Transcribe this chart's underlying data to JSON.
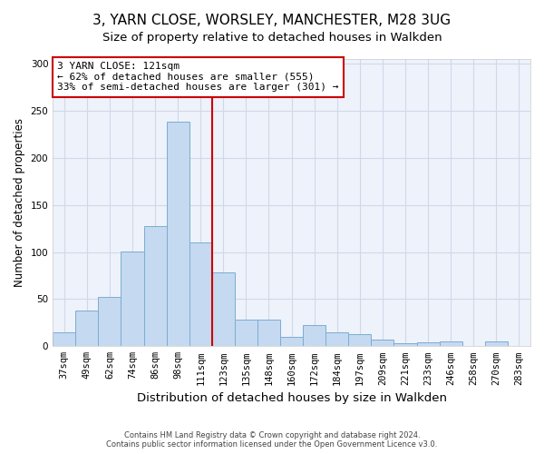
{
  "title": "3, YARN CLOSE, WORSLEY, MANCHESTER, M28 3UG",
  "subtitle": "Size of property relative to detached houses in Walkden",
  "xlabel": "Distribution of detached houses by size in Walkden",
  "ylabel": "Number of detached properties",
  "categories": [
    "37sqm",
    "49sqm",
    "62sqm",
    "74sqm",
    "86sqm",
    "98sqm",
    "111sqm",
    "123sqm",
    "135sqm",
    "148sqm",
    "160sqm",
    "172sqm",
    "184sqm",
    "197sqm",
    "209sqm",
    "221sqm",
    "233sqm",
    "246sqm",
    "258sqm",
    "270sqm",
    "283sqm"
  ],
  "values": [
    15,
    38,
    52,
    101,
    128,
    238,
    110,
    78,
    28,
    28,
    10,
    22,
    15,
    13,
    7,
    3,
    4,
    5,
    0,
    5,
    0
  ],
  "bar_color": "#c5d9f0",
  "bar_edge_color": "#7badd4",
  "vline_x": 6.5,
  "vline_color": "#cc0000",
  "annotation_text": "3 YARN CLOSE: 121sqm\n← 62% of detached houses are smaller (555)\n33% of semi-detached houses are larger (301) →",
  "annotation_box_color": "#ffffff",
  "annotation_box_edge": "#cc0000",
  "ylim": [
    0,
    305
  ],
  "yticks": [
    0,
    50,
    100,
    150,
    200,
    250,
    300
  ],
  "grid_color": "#d0d8e8",
  "footer1": "Contains HM Land Registry data © Crown copyright and database right 2024.",
  "footer2": "Contains public sector information licensed under the Open Government Licence v3.0.",
  "title_fontsize": 11,
  "tick_fontsize": 7.5,
  "ylabel_fontsize": 8.5,
  "xlabel_fontsize": 9.5,
  "bg_color": "#eef2fa"
}
